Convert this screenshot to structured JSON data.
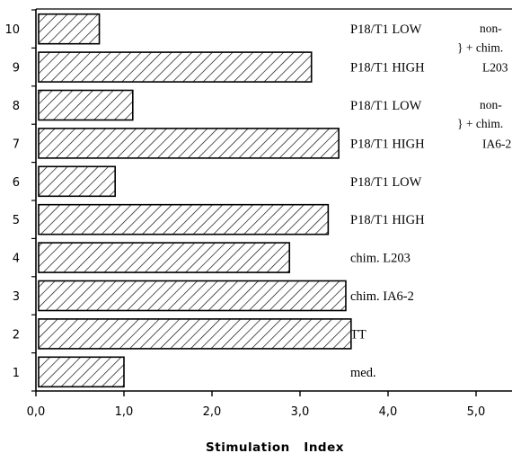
{
  "chart_data": {
    "type": "bar",
    "orientation": "horizontal",
    "xlabel": "Stimulation   Index",
    "xlim": [
      0,
      5.5
    ],
    "x_ticks": [
      "0,0",
      "1,0",
      "2,0",
      "3,0",
      "4,0",
      "5,0"
    ],
    "rows": [
      {
        "index": "1",
        "label": "med.",
        "value": 1.0
      },
      {
        "index": "2",
        "label": "TT",
        "value": 3.58
      },
      {
        "index": "3",
        "label": "chim.  IA6-2",
        "value": 3.52
      },
      {
        "index": "4",
        "label": "chim.  L203",
        "value": 2.88
      },
      {
        "index": "5",
        "label": "P18/T1 HIGH",
        "value": 3.32
      },
      {
        "index": "6",
        "label": "P18/T1 LOW",
        "value": 0.9
      },
      {
        "index": "7",
        "label": "P18/T1 HIGH",
        "value": 3.44
      },
      {
        "index": "8",
        "label": "P18/T1 LOW",
        "value": 1.1
      },
      {
        "index": "9",
        "label": "P18/T1 HIGH",
        "value": 3.13
      },
      {
        "index": "10",
        "label": "P18/T1 LOW",
        "value": 0.72
      }
    ],
    "group_labels": [
      {
        "rows": [
          "9",
          "10"
        ],
        "top": "non-",
        "brace": "} + chim.",
        "bottom": "L203"
      },
      {
        "rows": [
          "7",
          "8"
        ],
        "top": "non-",
        "brace": "} + chim.",
        "bottom": "IA6-2"
      }
    ],
    "grid": false,
    "legend": "none"
  }
}
